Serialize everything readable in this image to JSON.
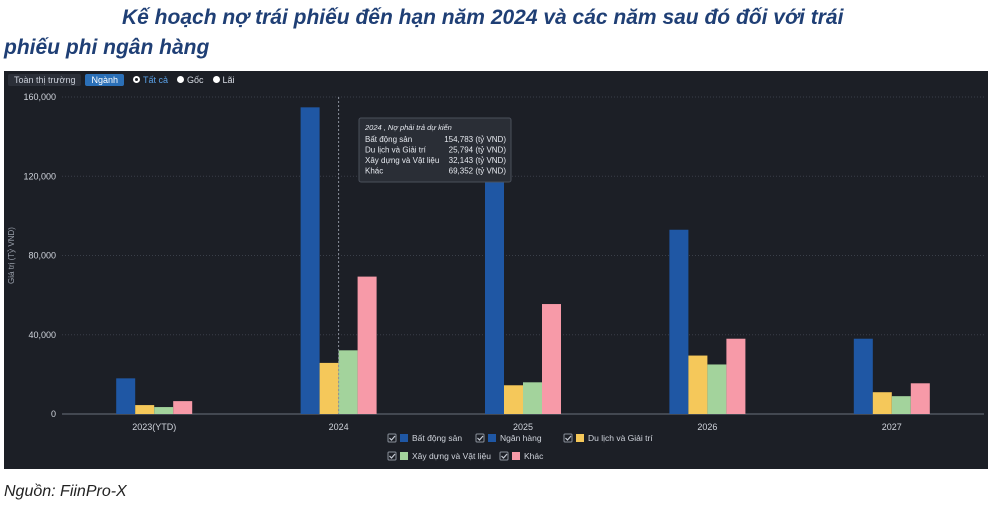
{
  "title_line1": "Kế hoạch nợ trái phiếu đến hạn năm 2024 và các năm sau đó đối với trái",
  "title_line2": "phiếu phi ngân hàng",
  "source": "Nguồn: FiinPro-X",
  "controls": {
    "tab_market": "Toàn thị trường",
    "tab_sector": "Ngành",
    "radio_all": "Tất cả",
    "radio_principal": "Gốc",
    "radio_interest": "Lãi"
  },
  "tooltip": {
    "header": "2024 , Nợ phải trả dự kiến",
    "rows": [
      {
        "label": "Bất động sản",
        "value": "154,783 (tỷ VND)"
      },
      {
        "label": "Du lịch và Giải trí",
        "value": "25,794 (tỷ VND)"
      },
      {
        "label": "Xây dựng và Vật liệu",
        "value": "32,143 (tỷ VND)"
      },
      {
        "label": "Khác",
        "value": "69,352 (tỷ VND)"
      }
    ]
  },
  "colors": {
    "bg": "#1c1f26",
    "grid": "#3a3f49",
    "text": "#d0d4dc",
    "bat_dong_san": "#1f57a4",
    "du_lich": "#f5c85a",
    "xay_dung": "#a3d39c",
    "khac": "#f79aa8"
  },
  "chart_data": {
    "type": "bar",
    "ylabel": "Giá trị (Tỷ VND)",
    "xlabel": "",
    "ylim": [
      0,
      160000
    ],
    "yticks": [
      0,
      40000,
      80000,
      120000,
      160000
    ],
    "ytick_labels": [
      "0",
      "40,000",
      "80,000",
      "120,000",
      "160,000"
    ],
    "grid": true,
    "legend_position": "bottom",
    "categories": [
      "2023(YTD)",
      "2024",
      "2025",
      "2026",
      "2027"
    ],
    "series": [
      {
        "name": "Bất động sản",
        "color_key": "bat_dong_san",
        "values": [
          18000,
          154783,
          124000,
          93000,
          38000
        ]
      },
      {
        "name": "Ngân hàng",
        "color_key": null,
        "values": [
          0,
          0,
          0,
          0,
          0
        ]
      },
      {
        "name": "Du lịch và Giải trí",
        "color_key": "du_lich",
        "values": [
          4500,
          25794,
          14500,
          29500,
          11000
        ]
      },
      {
        "name": "Xây dựng và Vật liệu",
        "color_key": "xay_dung",
        "values": [
          3500,
          32143,
          16000,
          25000,
          9000
        ]
      },
      {
        "name": "Khác",
        "color_key": "khac",
        "values": [
          6500,
          69352,
          55500,
          38000,
          15500
        ]
      }
    ]
  }
}
